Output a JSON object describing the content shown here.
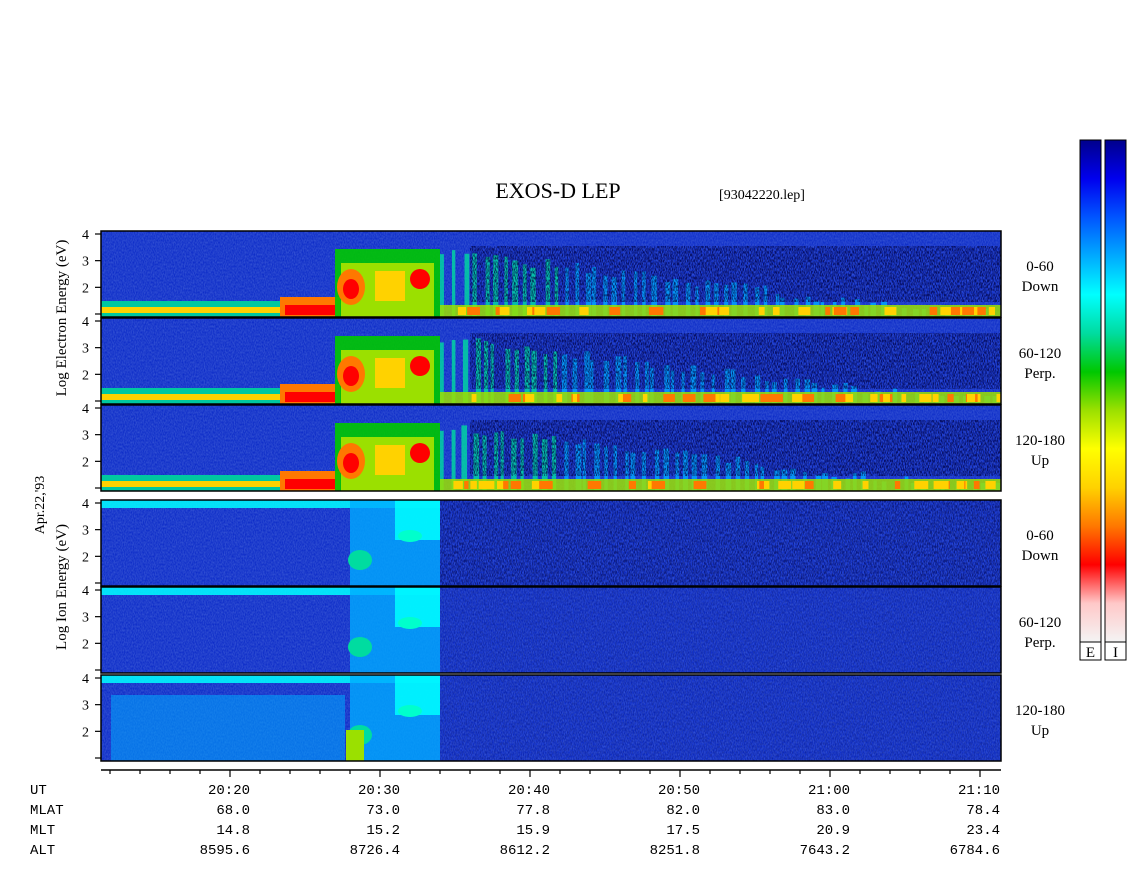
{
  "chart_data": {
    "type": "heatmap",
    "title": "EXOS-D LEP",
    "file_label": "[93042220.lep]",
    "date_label": "Apr.22,'93",
    "electron_ylabel": [
      "Log",
      "Electron",
      "Energy",
      "(eV)"
    ],
    "ion_ylabel": [
      "Log",
      "Ion",
      "Energy",
      "(eV)"
    ],
    "y_ticks": [
      "1",
      "2",
      "3",
      "4"
    ],
    "ylim": [
      1,
      4
    ],
    "time_ticks": [
      "20:20",
      "20:30",
      "20:40",
      "20:50",
      "21:00",
      "21:10"
    ],
    "panels": [
      {
        "species": "electron",
        "pitch_angle": "0-60",
        "direction": "Down"
      },
      {
        "species": "electron",
        "pitch_angle": "60-120",
        "direction": "Perp."
      },
      {
        "species": "electron",
        "pitch_angle": "120-180",
        "direction": "Up"
      },
      {
        "species": "ion",
        "pitch_angle": "0-60",
        "direction": "Down"
      },
      {
        "species": "ion",
        "pitch_angle": "60-120",
        "direction": "Perp."
      },
      {
        "species": "ion",
        "pitch_angle": "120-180",
        "direction": "Up"
      }
    ],
    "ephemeris": [
      {
        "label": "UT",
        "values": [
          "20:20",
          "20:30",
          "20:40",
          "20:50",
          "21:00",
          "21:10"
        ]
      },
      {
        "label": "MLAT",
        "values": [
          "68.0",
          "73.0",
          "77.8",
          "82.0",
          "83.0",
          "78.4"
        ]
      },
      {
        "label": "MLT",
        "values": [
          "14.8",
          "15.2",
          "15.9",
          "17.5",
          "20.9",
          "23.4"
        ]
      },
      {
        "label": "ALT",
        "values": [
          "8595.6",
          "8726.4",
          "8612.2",
          "8251.8",
          "7643.2",
          "6784.6"
        ]
      }
    ],
    "colorbars": [
      {
        "label": "E"
      },
      {
        "label": "I"
      }
    ],
    "colormap": [
      "#f4f4f4",
      "#ffc8c8",
      "#ff0000",
      "#ff7800",
      "#ffd200",
      "#ffff00",
      "#9be000",
      "#00c800",
      "#00dca0",
      "#00ffff",
      "#00aaff",
      "#0055ff",
      "#0000ee",
      "#00008c"
    ]
  }
}
